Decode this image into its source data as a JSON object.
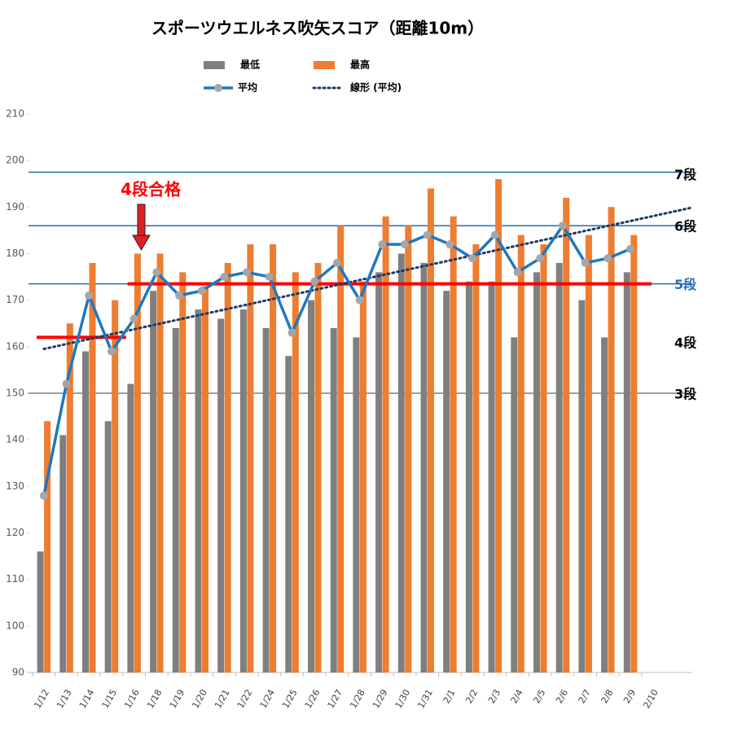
{
  "chart_data": {
    "type": "bar-line",
    "title": "スポーツウエルネス吹矢スコア（距離10m）",
    "categories": [
      "1/12",
      "1/13",
      "1/14",
      "1/15",
      "1/16",
      "1/18",
      "1/19",
      "1/20",
      "1/21",
      "1/22",
      "1/24",
      "1/25",
      "1/26",
      "1/27",
      "1/28",
      "1/29",
      "1/30",
      "1/31",
      "2/1",
      "2/2",
      "2/3",
      "2/4",
      "2/5",
      "2/6",
      "2/7",
      "2/8",
      "2/9",
      "2/10"
    ],
    "series": [
      {
        "name": "最低",
        "color": "#7f7f7f",
        "kind": "bar",
        "values": [
          116,
          141,
          159,
          144,
          152,
          172,
          164,
          168,
          166,
          168,
          164,
          158,
          170,
          164,
          162,
          176,
          180,
          178,
          172,
          174,
          174,
          162,
          176,
          178,
          170,
          162,
          176,
          null
        ]
      },
      {
        "name": "最高",
        "color": "#ed7d31",
        "kind": "bar",
        "values": [
          144,
          165,
          178,
          170,
          180,
          180,
          176,
          173,
          178,
          182,
          182,
          176,
          178,
          186,
          174,
          188,
          186,
          194,
          188,
          182,
          196,
          184,
          182,
          192,
          184,
          190,
          184,
          null
        ]
      },
      {
        "name": "平均",
        "color": "#1f77c0",
        "kind": "line",
        "values": [
          128,
          152,
          171,
          159,
          166,
          176,
          171,
          172,
          175,
          176,
          175,
          163,
          174,
          178,
          170,
          182,
          182,
          184,
          182,
          179,
          184,
          176,
          179,
          186,
          178,
          179,
          181,
          null
        ]
      }
    ],
    "trendline": {
      "name": "線形 (平均)",
      "color": "#1f3864"
    },
    "levels": [
      {
        "label": "7段",
        "value": 197.5,
        "color": "#1f6fb5",
        "label_color": "#000000"
      },
      {
        "label": "6段",
        "value": 186,
        "color": "#1f6fb5",
        "label_color": "#000000"
      },
      {
        "label": "5段",
        "value": 173.5,
        "color": "#1f6fb5",
        "label_color": "#1f6fb5"
      },
      {
        "label": "4段",
        "value": 161,
        "color": null,
        "label_color": "#000000"
      },
      {
        "label": "3段",
        "value": 150,
        "color": "#7f7f7f",
        "label_color": "#000000"
      }
    ],
    "red_lines": [
      {
        "value": 162
      },
      {
        "value": 173.5
      }
    ],
    "annotation": "4段合格",
    "ylim": [
      90,
      210
    ],
    "yticks": [
      90,
      100,
      110,
      120,
      130,
      140,
      150,
      160,
      170,
      180,
      190,
      200,
      210
    ],
    "grid": false
  }
}
